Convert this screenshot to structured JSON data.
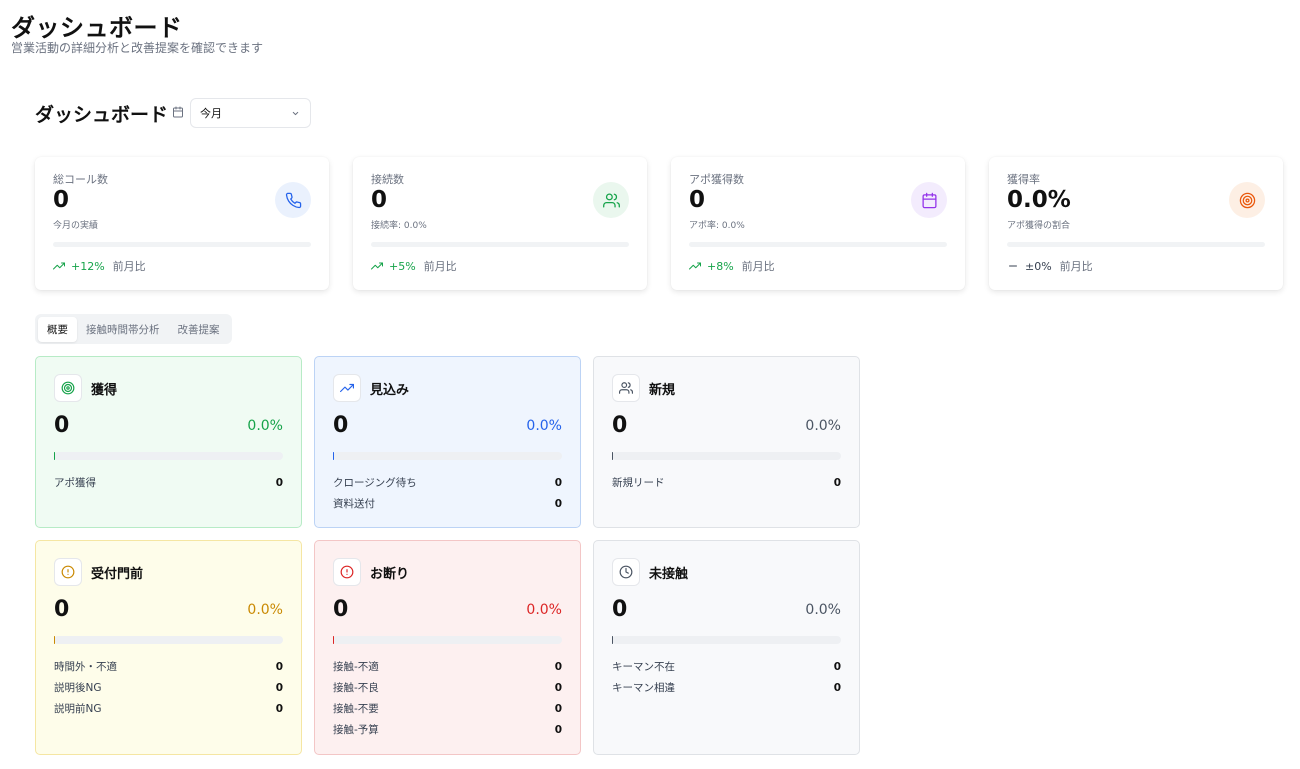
{
  "header": {
    "title": "ダッシュボード",
    "subtitle": "営業活動の詳細分析と改善提案を確認できます"
  },
  "dashboard": {
    "heading": "ダッシュボード",
    "period": "今月"
  },
  "stats": [
    {
      "label": "総コール数",
      "value": "0",
      "sub": "今月の実績",
      "trend": "+12%",
      "trend_dir": "up",
      "compare": "前月比",
      "icon": "phone-icon",
      "icon_bg": "#eaf1fd",
      "icon_color": "#2563eb"
    },
    {
      "label": "接続数",
      "value": "0",
      "sub": "接続率: 0.0%",
      "trend": "+5%",
      "trend_dir": "up",
      "compare": "前月比",
      "icon": "users-icon",
      "icon_bg": "#eaf7ee",
      "icon_color": "#16a34a"
    },
    {
      "label": "アポ獲得数",
      "value": "0",
      "sub": "アポ率: 0.0%",
      "trend": "+8%",
      "trend_dir": "up",
      "compare": "前月比",
      "icon": "calendar-icon",
      "icon_bg": "#f3ecfd",
      "icon_color": "#9333ea"
    },
    {
      "label": "獲得率",
      "value": "0.0%",
      "sub": "アポ獲得の割合",
      "trend": "±0%",
      "trend_dir": "flat",
      "compare": "前月比",
      "icon": "target-icon",
      "icon_bg": "#fdefe4",
      "icon_color": "#ea580c"
    }
  ],
  "tabs": [
    {
      "label": "概要",
      "active": true
    },
    {
      "label": "接触時間帯分析",
      "active": false
    },
    {
      "label": "改善提案",
      "active": false
    }
  ],
  "categories": [
    {
      "title": "獲得",
      "count": "0",
      "pct": "0.0%",
      "fill": 0.0,
      "icon": "target-icon",
      "bg": "#f0fbf3",
      "border": "#b7ebc6",
      "accent": "#16a34a",
      "rows": [
        {
          "label": "アポ獲得",
          "value": "0"
        }
      ]
    },
    {
      "title": "見込み",
      "count": "0",
      "pct": "0.0%",
      "fill": 0.0,
      "icon": "trending-up-icon",
      "bg": "#eff5fe",
      "border": "#bcd3f5",
      "accent": "#2563eb",
      "rows": [
        {
          "label": "クロージング待ち",
          "value": "0"
        },
        {
          "label": "資料送付",
          "value": "0"
        }
      ]
    },
    {
      "title": "新規",
      "count": "0",
      "pct": "0.0%",
      "fill": 0.0,
      "icon": "users-icon",
      "bg": "#f8f9fb",
      "border": "#dfe2e6",
      "accent": "#4b5563",
      "rows": [
        {
          "label": "新規リード",
          "value": "0"
        }
      ]
    },
    {
      "title": "受付門前",
      "count": "0",
      "pct": "0.0%",
      "fill": 0.0,
      "icon": "alert-circle-icon",
      "bg": "#fefdea",
      "border": "#f5e6a3",
      "accent": "#ca8a04",
      "rows": [
        {
          "label": "時間外・不適",
          "value": "0"
        },
        {
          "label": "説明後NG",
          "value": "0"
        },
        {
          "label": "説明前NG",
          "value": "0"
        }
      ]
    },
    {
      "title": "お断り",
      "count": "0",
      "pct": "0.0%",
      "fill": 0.0,
      "icon": "alert-circle-icon",
      "bg": "#fdf0f0",
      "border": "#f3c6c6",
      "accent": "#dc2626",
      "rows": [
        {
          "label": "接触-不適",
          "value": "0"
        },
        {
          "label": "接触-不良",
          "value": "0"
        },
        {
          "label": "接触-不要",
          "value": "0"
        },
        {
          "label": "接触-予算",
          "value": "0"
        }
      ]
    },
    {
      "title": "未接触",
      "count": "0",
      "pct": "0.0%",
      "fill": 0.0,
      "icon": "clock-icon",
      "bg": "#f8f9fb",
      "border": "#dfe2e6",
      "accent": "#4b5563",
      "rows": [
        {
          "label": "キーマン不在",
          "value": "0"
        },
        {
          "label": "キーマン相違",
          "value": "0"
        }
      ]
    }
  ]
}
